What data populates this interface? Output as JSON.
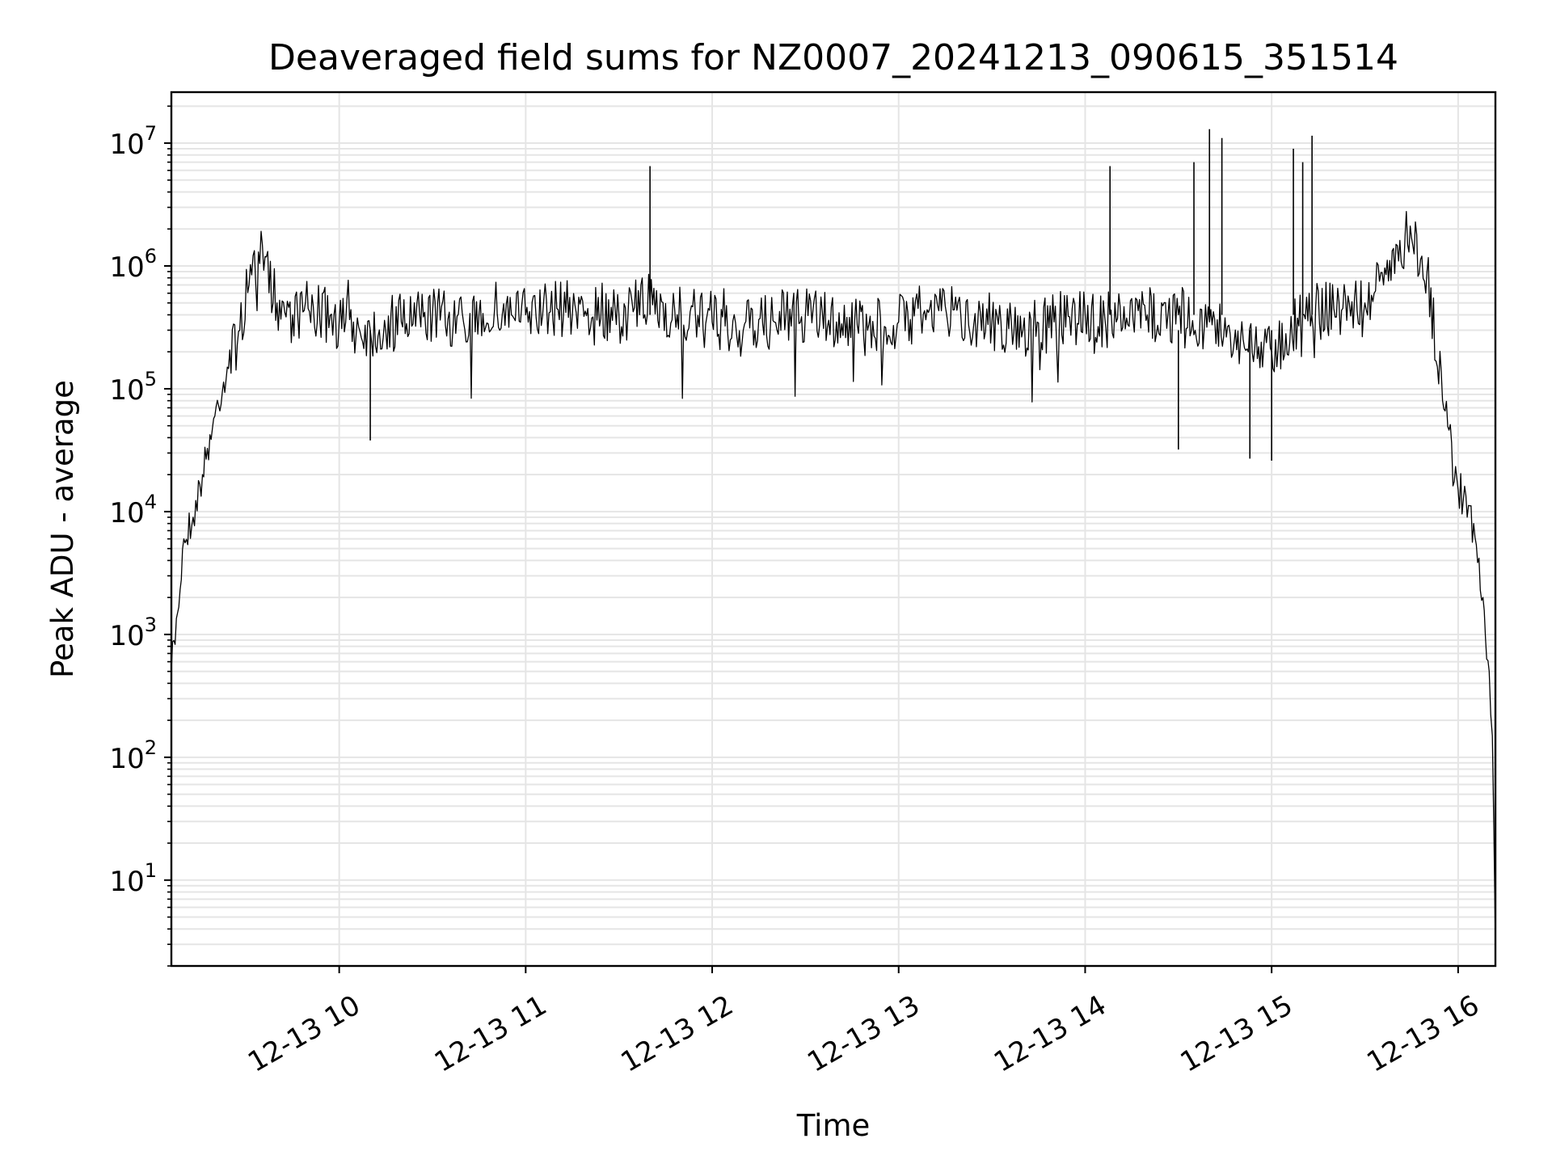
{
  "chart_data": {
    "type": "line",
    "title": "Deaveraged field sums for NZ0007_20241213_090615_351514",
    "xlabel": "Time",
    "ylabel": "Peak ADU - average",
    "yscale": "log",
    "grid": true,
    "grid_minor": true,
    "line_color": "#000000",
    "grid_color": "#e5e5e5",
    "xlim": [
      "2024-12-13 09:06",
      "2024-12-13 16:12"
    ],
    "ylim": [
      2,
      26000000
    ],
    "x_ticks": [
      {
        "t": "2024-12-13 10:00",
        "label": "12-13 10"
      },
      {
        "t": "2024-12-13 11:00",
        "label": "12-13 11"
      },
      {
        "t": "2024-12-13 12:00",
        "label": "12-13 12"
      },
      {
        "t": "2024-12-13 13:00",
        "label": "12-13 13"
      },
      {
        "t": "2024-12-13 14:00",
        "label": "12-13 14"
      },
      {
        "t": "2024-12-13 15:00",
        "label": "12-13 15"
      },
      {
        "t": "2024-12-13 16:00",
        "label": "12-13 16"
      }
    ],
    "y_ticks": [
      {
        "value": 10,
        "base": "10",
        "exp": "1"
      },
      {
        "value": 100,
        "base": "10",
        "exp": "2"
      },
      {
        "value": 1000,
        "base": "10",
        "exp": "3"
      },
      {
        "value": 10000,
        "base": "10",
        "exp": "4"
      },
      {
        "value": 100000,
        "base": "10",
        "exp": "5"
      },
      {
        "value": 1000000,
        "base": "10",
        "exp": "6"
      },
      {
        "value": 10000000,
        "base": "10",
        "exp": "7"
      }
    ],
    "series": [
      {
        "x": [
          "2024-12-13 09:06",
          "2024-12-13 09:08",
          "2024-12-13 09:10",
          "2024-12-13 09:13",
          "2024-12-13 09:16",
          "2024-12-13 09:20",
          "2024-12-13 09:24",
          "2024-12-13 09:28",
          "2024-12-13 09:31",
          "2024-12-13 09:34",
          "2024-12-13 09:40",
          "2024-12-13 09:45",
          "2024-12-13 09:50",
          "2024-12-13 10:00",
          "2024-12-13 10:10",
          "2024-12-13 10:20",
          "2024-12-13 10:30",
          "2024-12-13 10:40",
          "2024-12-13 10:50",
          "2024-12-13 11:00",
          "2024-12-13 11:10",
          "2024-12-13 11:20",
          "2024-12-13 11:30",
          "2024-12-13 11:40",
          "2024-12-13 11:50",
          "2024-12-13 12:00",
          "2024-12-13 12:10",
          "2024-12-13 12:20",
          "2024-12-13 12:30",
          "2024-12-13 12:40",
          "2024-12-13 12:50",
          "2024-12-13 13:00",
          "2024-12-13 13:10",
          "2024-12-13 13:20",
          "2024-12-13 13:30",
          "2024-12-13 13:40",
          "2024-12-13 13:50",
          "2024-12-13 14:00",
          "2024-12-13 14:10",
          "2024-12-13 14:20",
          "2024-12-13 14:30",
          "2024-12-13 14:40",
          "2024-12-13 14:50",
          "2024-12-13 15:00",
          "2024-12-13 15:10",
          "2024-12-13 15:20",
          "2024-12-13 15:30",
          "2024-12-13 15:36",
          "2024-12-13 15:40",
          "2024-12-13 15:45",
          "2024-12-13 15:50",
          "2024-12-13 15:55",
          "2024-12-13 16:00",
          "2024-12-13 16:05",
          "2024-12-13 16:08",
          "2024-12-13 16:10",
          "2024-12-13 16:11",
          "2024-12-13 16:12"
        ],
        "y": [
          500,
          1500,
          6000,
          9000,
          20000,
          60000,
          150000,
          300000,
          700000,
          1300000,
          500000,
          400000,
          450000,
          350000,
          300000,
          350000,
          400000,
          350000,
          450000,
          400000,
          450000,
          450000,
          400000,
          500000,
          400000,
          350000,
          300000,
          350000,
          400000,
          350000,
          300000,
          350000,
          450000,
          400000,
          350000,
          300000,
          350000,
          400000,
          350000,
          400000,
          400000,
          350000,
          250000,
          200000,
          400000,
          450000,
          500000,
          700000,
          1500000,
          1700000,
          900000,
          80000,
          15000,
          8000,
          2000,
          500,
          150,
          3
        ]
      }
    ],
    "spikes": [
      {
        "x": "2024-12-13 11:40",
        "y": 6500000
      },
      {
        "x": "2024-12-13 14:08",
        "y": 6500000
      },
      {
        "x": "2024-12-13 14:35",
        "y": 7000000
      },
      {
        "x": "2024-12-13 14:40",
        "y": 13000000
      },
      {
        "x": "2024-12-13 14:44",
        "y": 11000000
      },
      {
        "x": "2024-12-13 15:07",
        "y": 9000000
      },
      {
        "x": "2024-12-13 15:10",
        "y": 7000000
      },
      {
        "x": "2024-12-13 15:13",
        "y": 11500000
      },
      {
        "x": "2024-12-13 10:10",
        "y": 38000
      },
      {
        "x": "2024-12-13 14:30",
        "y": 32000
      },
      {
        "x": "2024-12-13 14:53",
        "y": 27000
      },
      {
        "x": "2024-12-13 15:00",
        "y": 26000
      }
    ]
  }
}
